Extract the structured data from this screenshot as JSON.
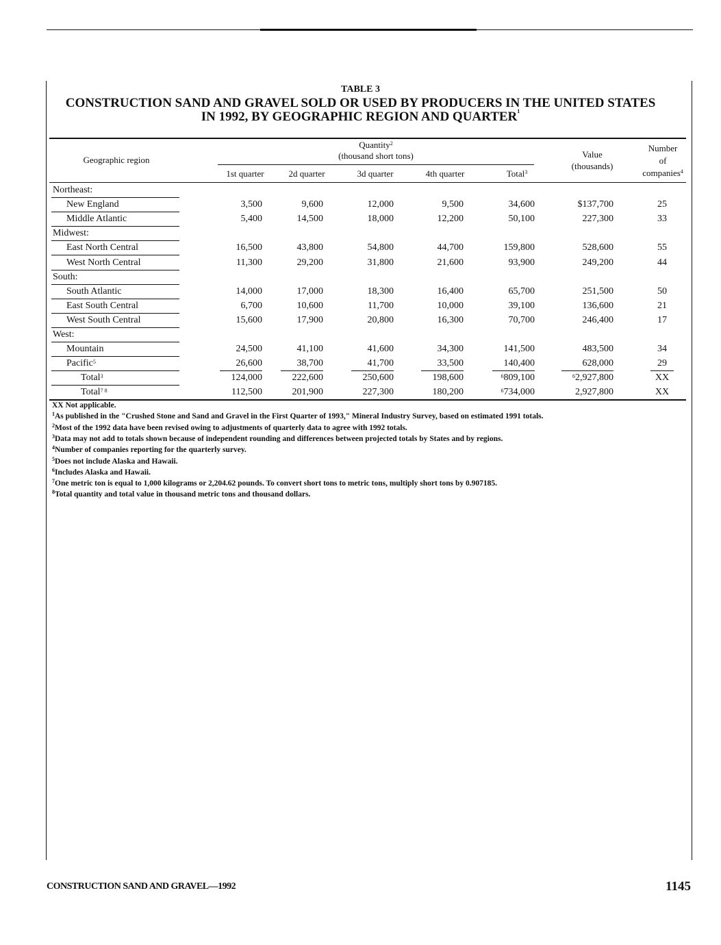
{
  "table_label": "TABLE 3",
  "title_line1": "CONSTRUCTION SAND AND GRAVEL SOLD OR USED BY PRODUCERS IN THE UNITED STATES",
  "title_line2": "IN 1992, BY GEOGRAPHIC REGION AND QUARTER",
  "title_note": "1",
  "headers": {
    "region": "Geographic region",
    "quantity": "Quantity",
    "quantity_note": "2",
    "quantity_unit": "(thousand short tons)",
    "q1": "1st quarter",
    "q2": "2d quarter",
    "q3": "3d quarter",
    "q4": "4th quarter",
    "total": "Total",
    "total_note": "3",
    "value": "Value",
    "value_unit": "(thousands)",
    "companies_1": "Number",
    "companies_2": "of",
    "companies_3": "companies",
    "companies_note": "4"
  },
  "rows": [
    {
      "label": "Northeast:",
      "type": "group"
    },
    {
      "label": "New England",
      "type": "item",
      "values": [
        "3,500",
        "9,600",
        "12,000",
        "9,500",
        "34,600",
        "$137,700",
        "25"
      ]
    },
    {
      "label": "Middle Atlantic",
      "type": "item",
      "values": [
        "5,400",
        "14,500",
        "18,000",
        "12,200",
        "50,100",
        "227,300",
        "33"
      ]
    },
    {
      "label": "Midwest:",
      "type": "group"
    },
    {
      "label": "East North Central",
      "type": "item",
      "values": [
        "16,500",
        "43,800",
        "54,800",
        "44,700",
        "159,800",
        "528,600",
        "55"
      ]
    },
    {
      "label": "West North Central",
      "type": "item",
      "values": [
        "11,300",
        "29,200",
        "31,800",
        "21,600",
        "93,900",
        "249,200",
        "44"
      ]
    },
    {
      "label": "South:",
      "type": "group"
    },
    {
      "label": "South Atlantic",
      "type": "item",
      "values": [
        "14,000",
        "17,000",
        "18,300",
        "16,400",
        "65,700",
        "251,500",
        "50"
      ]
    },
    {
      "label": "East South Central",
      "type": "item",
      "values": [
        "6,700",
        "10,600",
        "11,700",
        "10,000",
        "39,100",
        "136,600",
        "21"
      ]
    },
    {
      "label": "West South Central",
      "type": "item",
      "values": [
        "15,600",
        "17,900",
        "20,800",
        "16,300",
        "70,700",
        "246,400",
        "17"
      ]
    },
    {
      "label": "West:",
      "type": "group"
    },
    {
      "label": "Mountain",
      "type": "item",
      "values": [
        "24,500",
        "41,100",
        "41,600",
        "34,300",
        "141,500",
        "483,500",
        "34"
      ]
    },
    {
      "label": "Pacific",
      "note": "5",
      "type": "item",
      "values": [
        "26,600",
        "38,700",
        "41,700",
        "33,500",
        "140,400",
        "628,000",
        "29"
      ]
    },
    {
      "label": "Total",
      "note": "3",
      "type": "total",
      "values": [
        "124,000",
        "222,600",
        "250,600",
        "198,600",
        "809,100",
        "2,927,800",
        "XX"
      ],
      "value_notes": [
        "",
        "",
        "",
        "",
        "6",
        "6",
        ""
      ]
    },
    {
      "label": "Total",
      "note": "7 8",
      "type": "total",
      "values": [
        "112,500",
        "201,900",
        "227,300",
        "180,200",
        "734,000",
        "2,927,800",
        "XX"
      ],
      "value_notes": [
        "",
        "",
        "",
        "",
        "6",
        "",
        ""
      ]
    }
  ],
  "footnotes": [
    {
      "mark": "",
      "text": "XX Not applicable."
    },
    {
      "mark": "1",
      "text": "As published in the \"Crushed Stone and Sand and Gravel in the First Quarter of 1993,\" Mineral Industry Survey, based on estimated 1991 totals."
    },
    {
      "mark": "2",
      "text": "Most of the 1992 data have been revised owing to adjustments of quarterly data to agree with 1992 totals."
    },
    {
      "mark": "3",
      "text": "Data may not add to totals shown because of independent rounding and differences between projected totals by States and by regions."
    },
    {
      "mark": "4",
      "text": "Number of companies reporting for the quarterly survey."
    },
    {
      "mark": "5",
      "text": "Does not include Alaska and Hawaii."
    },
    {
      "mark": "6",
      "text": "Includes Alaska and Hawaii."
    },
    {
      "mark": "7",
      "text": "One metric ton is equal to 1,000 kilograms or 2,204.62 pounds.  To convert short tons to metric tons, multiply short tons by 0.907185."
    },
    {
      "mark": "8",
      "text": "Total quantity and total value in thousand metric tons and thousand dollars."
    }
  ],
  "footer": {
    "running_title": "CONSTRUCTION SAND AND GRAVEL—1992",
    "page_number": "1145"
  }
}
